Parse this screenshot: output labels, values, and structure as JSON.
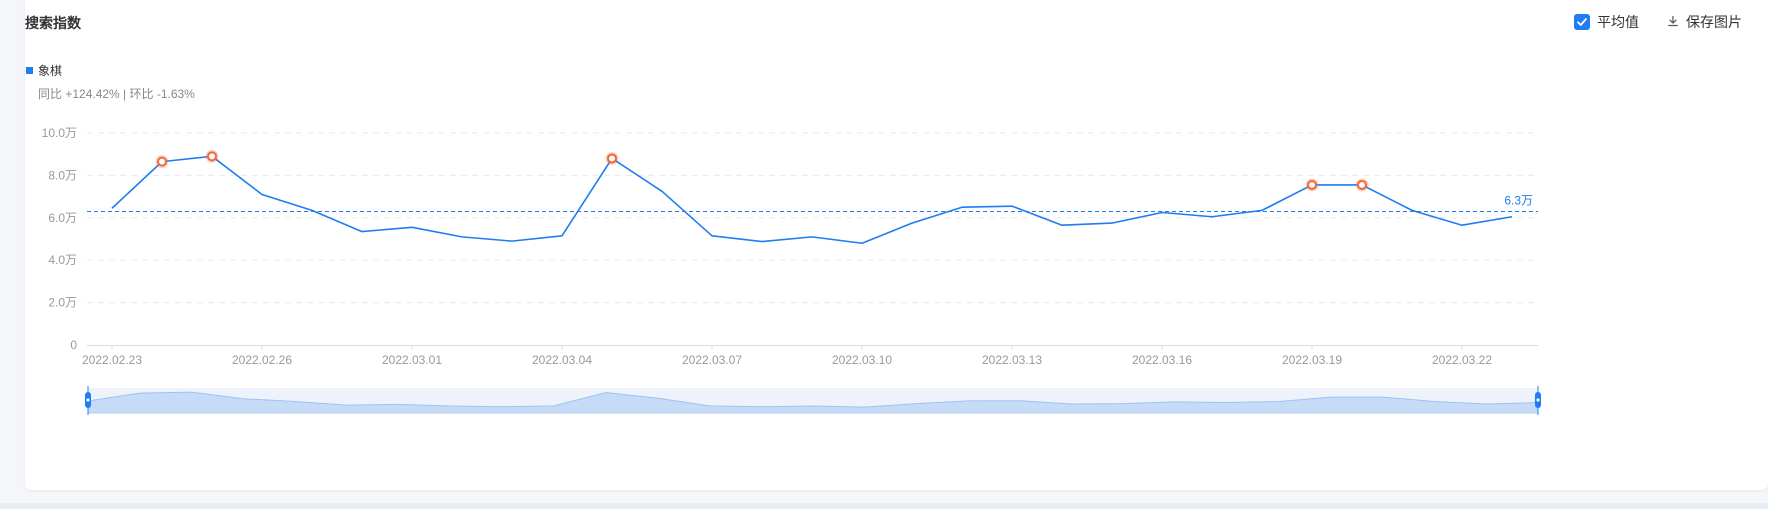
{
  "header": {
    "title": "搜索指数",
    "average_toggle_label": "平均值",
    "save_image_label": "保存图片"
  },
  "legend": {
    "series_name": "象棋",
    "stats_text": "同比 +124.42% | 环比 -1.63%"
  },
  "colors": {
    "line": "#1f7cf2",
    "highlight": "#f0683e",
    "grid": "#e8eaee"
  },
  "icons": {
    "checkbox": "checkmark-icon",
    "download": "download-icon"
  },
  "chart_data": {
    "type": "line",
    "series": [
      {
        "name": "象棋",
        "values": [
          6.45,
          8.65,
          8.9,
          7.1,
          6.35,
          5.35,
          5.55,
          5.1,
          4.9,
          5.15,
          8.8,
          7.25,
          5.15,
          4.88,
          5.1,
          4.8,
          5.75,
          6.5,
          6.55,
          5.65,
          5.75,
          6.25,
          6.05,
          6.35,
          7.55,
          7.55,
          6.35,
          5.65,
          6.05
        ]
      }
    ],
    "x": [
      "2022.02.23",
      "2022.02.24",
      "2022.02.25",
      "2022.02.26",
      "2022.02.27",
      "2022.02.28",
      "2022.03.01",
      "2022.03.02",
      "2022.03.03",
      "2022.03.04",
      "2022.03.05",
      "2022.03.06",
      "2022.03.07",
      "2022.03.08",
      "2022.03.09",
      "2022.03.10",
      "2022.03.11",
      "2022.03.12",
      "2022.03.13",
      "2022.03.14",
      "2022.03.15",
      "2022.03.16",
      "2022.03.17",
      "2022.03.18",
      "2022.03.19",
      "2022.03.20",
      "2022.03.21",
      "2022.03.22",
      "2022.03.23"
    ],
    "x_tick_labels": [
      "2022.02.23",
      "2022.02.26",
      "2022.03.01",
      "2022.03.04",
      "2022.03.07",
      "2022.03.10",
      "2022.03.13",
      "2022.03.16",
      "2022.03.19",
      "2022.03.22"
    ],
    "y_ticks": [
      0,
      2,
      4,
      6,
      8,
      10
    ],
    "y_tick_labels": [
      "0",
      "2.0万",
      "4.0万",
      "6.0万",
      "8.0万",
      "10.0万"
    ],
    "ylim": [
      0,
      10
    ],
    "unit": "万",
    "highlight_indices": [
      1,
      2,
      10,
      24,
      25
    ],
    "average": 6.3,
    "average_label": "6.3万",
    "grid": true
  }
}
